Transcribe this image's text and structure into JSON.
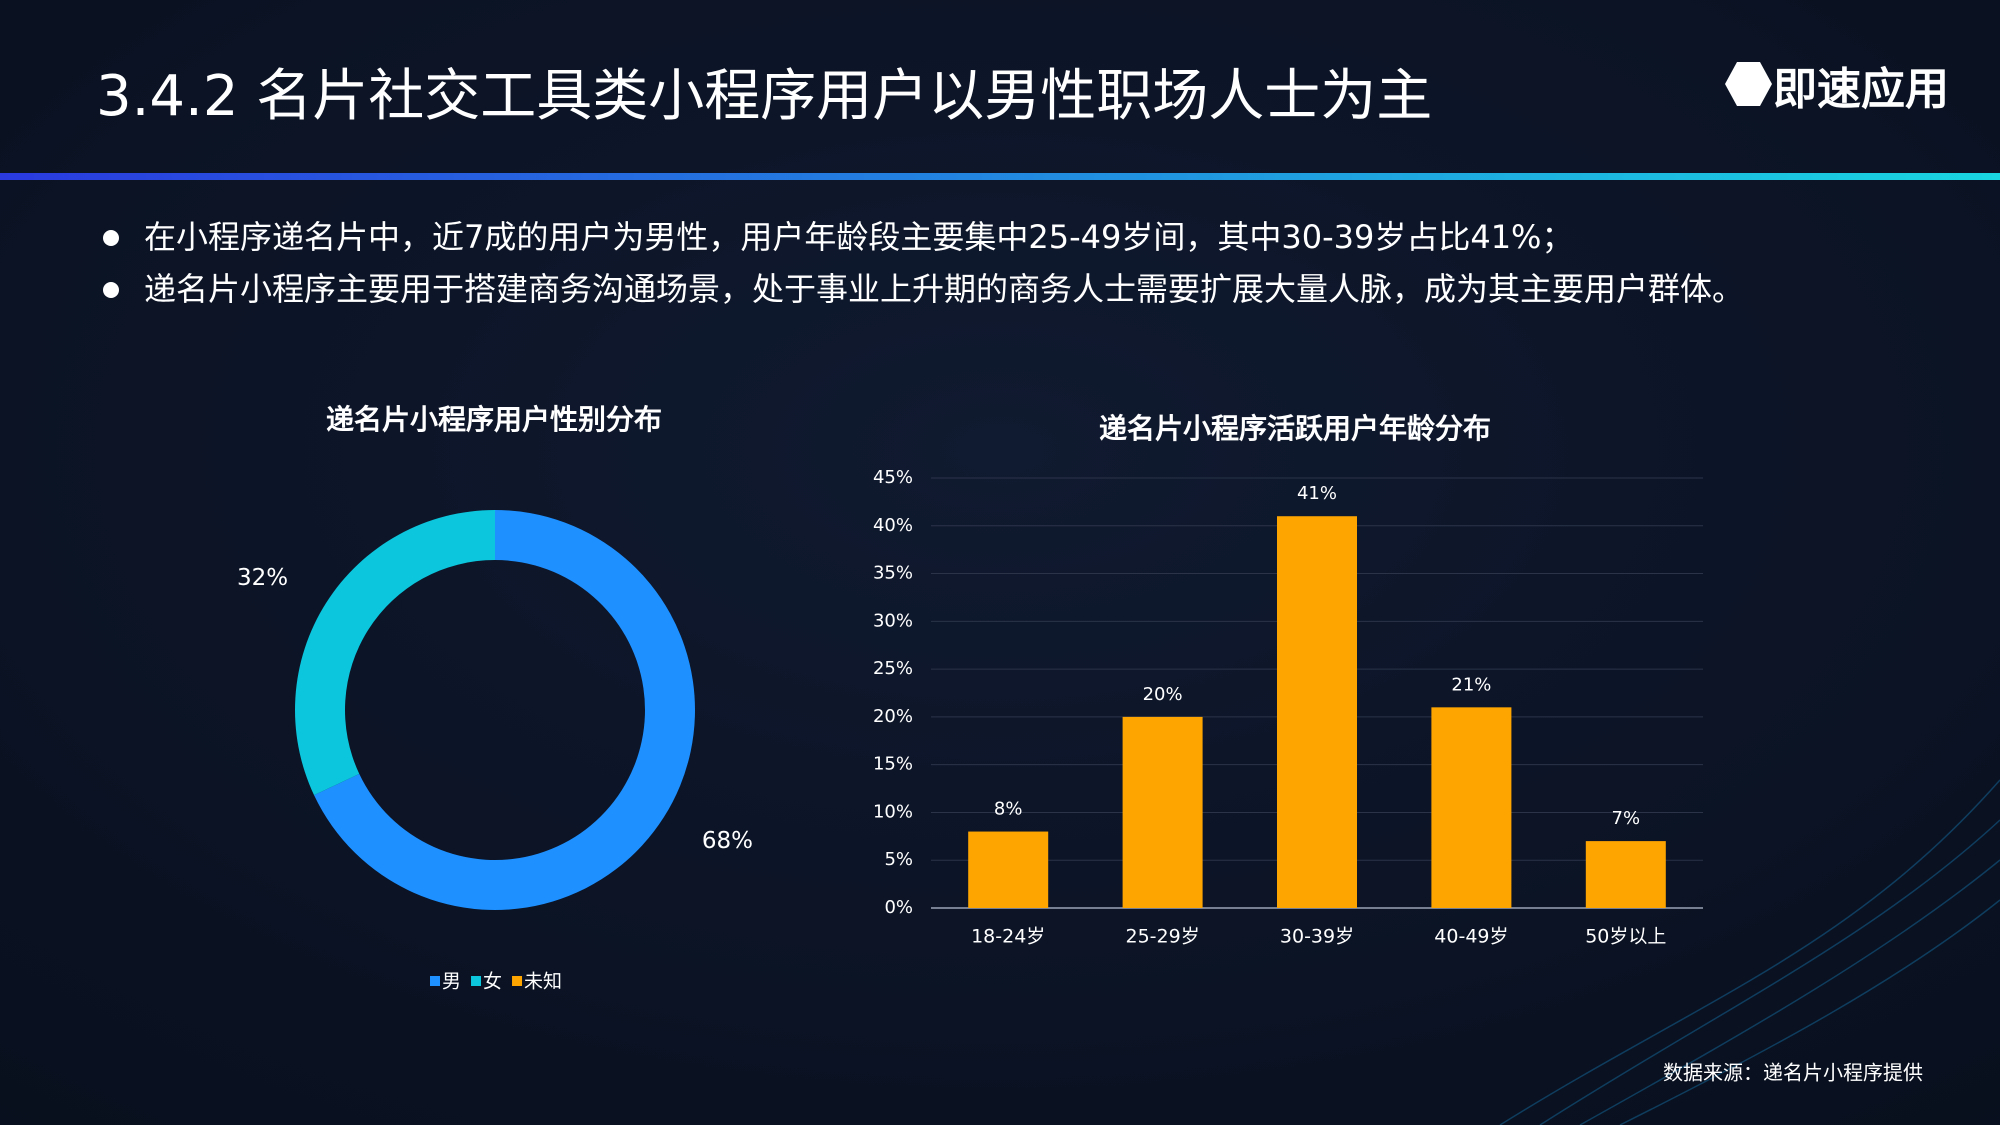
{
  "header": {
    "title": "3.4.2  名片社交工具类小程序用户以男性职场人士为主",
    "logo": "即速应用"
  },
  "bullets": [
    "在小程序递名片中，近7成的用户为男性，用户年龄段主要集中25-49岁间，其中30-39岁占比41%；",
    "递名片小程序主要用于搭建商务沟通场景，处于事业上升期的商务人士需要扩展大量人脉，成为其主要用户群体。"
  ],
  "source": "数据来源：递名片小程序提供",
  "chart_data": [
    {
      "type": "donut",
      "title": "递名片小程序用户性别分布",
      "categories": [
        "男",
        "女",
        "未知"
      ],
      "values": [
        68,
        32,
        0
      ],
      "value_labels": [
        "68%",
        "32%",
        null
      ],
      "colors": [
        "#1e90ff",
        "#0bc6dd",
        "#ffa500"
      ]
    },
    {
      "type": "bar",
      "title": "递名片小程序活跃用户年龄分布",
      "categories": [
        "18-24岁",
        "25-29岁",
        "30-39岁",
        "40-49岁",
        "50岁以上"
      ],
      "values": [
        8,
        20,
        41,
        21,
        7
      ],
      "value_labels": [
        "8%",
        "20%",
        "41%",
        "21%",
        "7%"
      ],
      "color": "#ffa500",
      "ylim": [
        0,
        45
      ],
      "yticks": [
        {
          "value": 0,
          "label": "0%"
        },
        {
          "value": 5,
          "label": "5%"
        },
        {
          "value": 10,
          "label": "10%"
        },
        {
          "value": 15,
          "label": "15%"
        },
        {
          "value": 20,
          "label": "20%"
        },
        {
          "value": 25,
          "label": "25%"
        },
        {
          "value": 30,
          "label": "30%"
        },
        {
          "value": 35,
          "label": "35%"
        },
        {
          "value": 40,
          "label": "40%"
        },
        {
          "value": 45,
          "label": "45%"
        }
      ],
      "grid": true
    }
  ]
}
